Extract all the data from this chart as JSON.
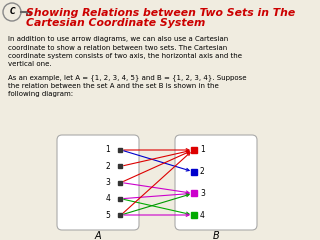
{
  "title_line1": "Showing Relations between Two Sets in The",
  "title_line2": "Cartesian Coordinate System",
  "title_color": "#cc0000",
  "bg_color": "#f0ece0",
  "body_text1": "In addition to use arrow diagrams, we can also use a Cartesian\ncoordinate to show a relation between two sets. The Cartesian\ncoordinate system consists of two axis, the horizontal axis and the\nvertical one.",
  "body_text2": "As an example, let A = {1, 2, 3, 4, 5} and B = {1, 2, 3, 4}. Suppose\nthe relation between the set A and the set B is shown in the\nfollowing diagram:",
  "arrows": [
    {
      "from": 1,
      "to": 1,
      "color": "#dd0000"
    },
    {
      "from": 1,
      "to": 2,
      "color": "#0000cc"
    },
    {
      "from": 2,
      "to": 1,
      "color": "#dd0000"
    },
    {
      "from": 3,
      "to": 1,
      "color": "#dd0000"
    },
    {
      "from": 3,
      "to": 3,
      "color": "#cc00cc"
    },
    {
      "from": 4,
      "to": 3,
      "color": "#cc00cc"
    },
    {
      "from": 4,
      "to": 4,
      "color": "#00aa00"
    },
    {
      "from": 5,
      "to": 1,
      "color": "#dd0000"
    },
    {
      "from": 5,
      "to": 3,
      "color": "#009900"
    },
    {
      "from": 5,
      "to": 4,
      "color": "#cc00cc"
    }
  ],
  "dot_colors_B": {
    "1": "#dd0000",
    "2": "#0000cc",
    "3": "#cc00cc",
    "4": "#00aa00"
  }
}
